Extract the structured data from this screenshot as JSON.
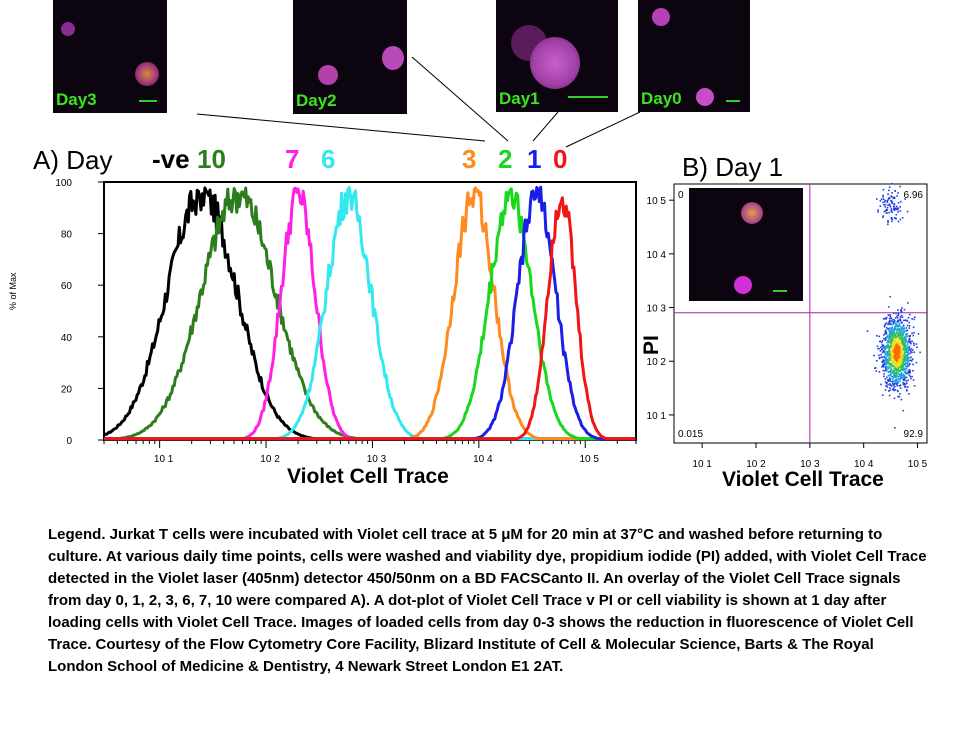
{
  "thumbnails": [
    {
      "label": "Day3"
    },
    {
      "label": "Day2"
    },
    {
      "label": "Day1"
    },
    {
      "label": "Day0"
    }
  ],
  "panelA": {
    "title": "A) Day",
    "day_labels": [
      {
        "text": "-ve",
        "color": "#000000"
      },
      {
        "text": "10",
        "color": "#2d7d1e"
      },
      {
        "text": "7",
        "color": "#ff1fe5"
      },
      {
        "text": "6",
        "color": "#33e8ee"
      },
      {
        "text": "3",
        "color": "#ff8a1e"
      },
      {
        "text": "2",
        "color": "#18d81c"
      },
      {
        "text": "1",
        "color": "#1a1ee8"
      },
      {
        "text": "0",
        "color": "#f21515"
      }
    ]
  },
  "panelB": {
    "title": "B) Day 1"
  },
  "legend_text": "Legend. Jurkat T cells were incubated with Violet cell trace at 5 μM for 20 min at 37°C and washed before returning to culture. At various daily time points, cells were washed and viability dye, propidium iodide (PI) added, with Violet Cell Trace detected in the Violet laser (405nm) detector 450/50nm on a BD FACSCanto II. An overlay of the Violet Cell Trace signals from day 0, 1, 2, 3, 6, 7, 10 were compared A). A dot-plot of Violet Cell Trace v PI or cell viability is shown at 1 day after loading cells with Violet Cell Trace. Images of loaded cells from day 0-3 shows the reduction in fluorescence of Violet Cell Trace. Courtesy of the Flow Cytometry Core Facility, Blizard Institute of Cell & Molecular Science, Barts & The Royal London School of Medicine & Dentistry, 4 Newark Street London E1 2AT.",
  "chart_data": [
    {
      "type": "line",
      "xlabel": "Violet Cell Trace",
      "ylabel": "% of Max",
      "x_scale": "log",
      "xlim": [
        3,
        300000
      ],
      "ylim": [
        0,
        100
      ],
      "yticks": [
        0,
        20,
        40,
        60,
        80,
        100
      ],
      "xtick_labels": [
        "10 1",
        "10 2",
        "10 3",
        "10 4",
        "10 5"
      ],
      "series": [
        {
          "name": "-ve",
          "color": "#000000",
          "peak_x": 25,
          "peak_y": 98,
          "log_width": 0.33
        },
        {
          "name": "10",
          "color": "#2d7d1e",
          "peak_x": 55,
          "peak_y": 98,
          "log_width": 0.35
        },
        {
          "name": "7",
          "color": "#ff1fe5",
          "peak_x": 200,
          "peak_y": 98,
          "log_width": 0.16
        },
        {
          "name": "6",
          "color": "#33e8ee",
          "peak_x": 600,
          "peak_y": 98,
          "log_width": 0.21
        },
        {
          "name": "3",
          "color": "#ff8a1e",
          "peak_x": 9000,
          "peak_y": 98,
          "log_width": 0.19
        },
        {
          "name": "2",
          "color": "#18d81c",
          "peak_x": 20000,
          "peak_y": 98,
          "log_width": 0.2
        },
        {
          "name": "1",
          "color": "#1a1ee8",
          "peak_x": 35000,
          "peak_y": 98,
          "log_width": 0.18
        },
        {
          "name": "0",
          "color": "#f21515",
          "peak_x": 60000,
          "peak_y": 98,
          "log_width": 0.13
        }
      ]
    },
    {
      "type": "scatter",
      "xlabel": "Violet Cell Trace",
      "ylabel": "PI",
      "x_scale": "log",
      "y_scale": "log",
      "xlim": [
        3,
        150000
      ],
      "ylim": [
        3,
        200000
      ],
      "x_gate": 1000,
      "y_gate": 800,
      "quadrant_values": {
        "upper_left": "0",
        "upper_right": "6.96",
        "lower_left": "0.015",
        "lower_right": "92.9"
      },
      "xtick_labels": [
        "10 1",
        "10 2",
        "10 3",
        "10 4",
        "10 5"
      ],
      "ytick_labels": [
        "10 1",
        "10 2",
        "10 3",
        "10 4",
        "10 5"
      ],
      "populations": [
        {
          "center_x": 40000,
          "center_y": 150,
          "share": 0.93
        },
        {
          "center_x": 30000,
          "center_y": 80000,
          "share": 0.07
        }
      ]
    }
  ]
}
